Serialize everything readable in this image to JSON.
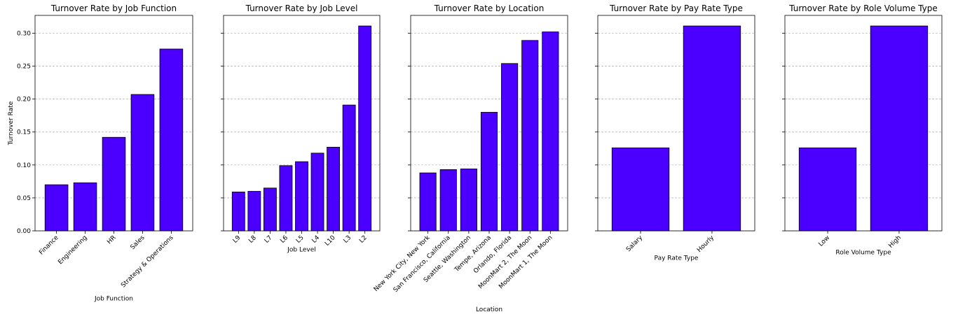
{
  "colors": {
    "bar": "#4b00ff",
    "bar_edge": "#000000",
    "grid": "#b0b0b0"
  },
  "shared_y": {
    "label": "Turnover Rate",
    "ylim": [
      0,
      0.327
    ],
    "ticks": [
      "0.00",
      "0.05",
      "0.10",
      "0.15",
      "0.20",
      "0.25",
      "0.30"
    ]
  },
  "chart_data": [
    {
      "type": "bar",
      "title": "Turnover Rate by Job Function",
      "xlabel": "Job Function",
      "ylabel": "Turnover Rate",
      "categories": [
        "Finance",
        "Engineering",
        "HR",
        "Sales",
        "Strategy & Operations"
      ],
      "values": [
        0.07,
        0.073,
        0.142,
        0.207,
        0.276
      ],
      "ylim": [
        0,
        0.327
      ],
      "grid": "y",
      "tick_rotation": 45
    },
    {
      "type": "bar",
      "title": "Turnover Rate by Job Level",
      "xlabel": "Job Level",
      "ylabel": "",
      "categories": [
        "L9",
        "L8",
        "L7",
        "L6",
        "L5",
        "L4",
        "L10",
        "L3",
        "L2"
      ],
      "values": [
        0.059,
        0.06,
        0.065,
        0.099,
        0.105,
        0.118,
        0.127,
        0.191,
        0.311
      ],
      "ylim": [
        0,
        0.327
      ],
      "grid": "y",
      "tick_rotation": 45
    },
    {
      "type": "bar",
      "title": "Turnover Rate by Location",
      "xlabel": "Location",
      "ylabel": "",
      "categories": [
        "New York City, New York",
        "San Francisco, California",
        "Seattle, Washington",
        "Tempe, Arizona",
        "Orlando, Florida",
        "MoonMart 2, The Moon",
        "MoonMart 1, The Moon"
      ],
      "values": [
        0.088,
        0.093,
        0.094,
        0.18,
        0.254,
        0.289,
        0.302
      ],
      "ylim": [
        0,
        0.327
      ],
      "grid": "y",
      "tick_rotation": 45
    },
    {
      "type": "bar",
      "title": "Turnover Rate by Pay Rate Type",
      "xlabel": "Pay Rate Type",
      "ylabel": "",
      "categories": [
        "Salary",
        "Hourly"
      ],
      "values": [
        0.126,
        0.311
      ],
      "ylim": [
        0,
        0.327
      ],
      "grid": "y",
      "tick_rotation": 45
    },
    {
      "type": "bar",
      "title": "Turnover Rate by Role Volume Type",
      "xlabel": "Role Volume Type",
      "ylabel": "",
      "categories": [
        "Low",
        "High"
      ],
      "values": [
        0.126,
        0.311
      ],
      "ylim": [
        0,
        0.327
      ],
      "grid": "y",
      "tick_rotation": 45
    }
  ]
}
